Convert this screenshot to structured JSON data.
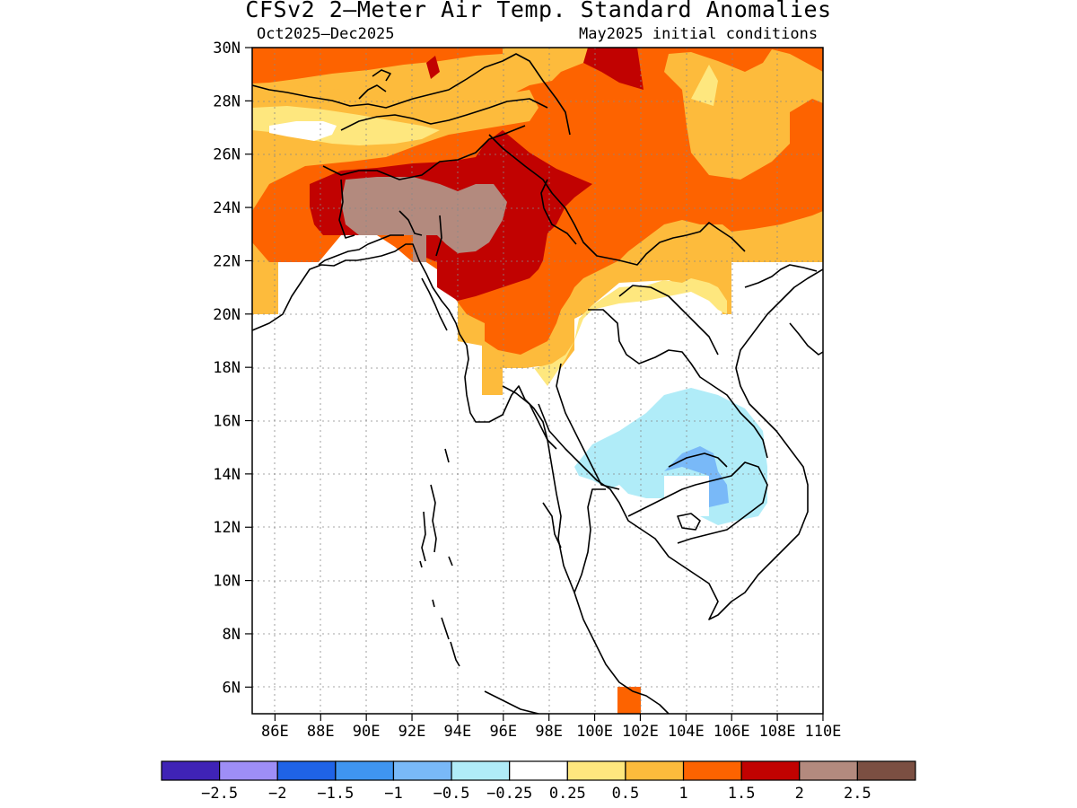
{
  "title": "CFSv2 2–Meter Air Temp. Standard Anomalies",
  "subtitle_left": "Oct2025–Dec2025",
  "subtitle_right": "May2025 initial conditions",
  "lat_labels": [
    "30N",
    "28N",
    "26N",
    "24N",
    "22N",
    "20N",
    "18N",
    "16N",
    "14N",
    "12N",
    "10N",
    "8N",
    "6N"
  ],
  "lon_labels": [
    "86E",
    "88E",
    "90E",
    "92E",
    "94E",
    "96E",
    "98E",
    "100E",
    "102E",
    "104E",
    "106E",
    "108E",
    "110E"
  ],
  "colorbar": {
    "colors": [
      "#3f23b6",
      "#9e8ef6",
      "#1f63e6",
      "#3f95f1",
      "#79b9f8",
      "#b0ecf8",
      "#ffffff",
      "#fee77e",
      "#fdbb3c",
      "#fd6300",
      "#c10201",
      "#b38a7e",
      "#7b4f42"
    ],
    "labels": [
      "−2.5",
      "−2",
      "−1.5",
      "−1",
      "−0.5",
      "−0.25",
      "0.25",
      "0.5",
      "1",
      "1.5",
      "2",
      "2.5"
    ]
  },
  "fill_colors": {
    "plus_0_25": "#fee77e",
    "plus_0_5": "#fdbb3c",
    "plus_1": "#fd6300",
    "plus_1_5": "#c10201",
    "plus_2": "#b38a7e",
    "minus_0_25": "#b0ecf8",
    "minus_0_5": "#79b9f8"
  },
  "map_extent": {
    "lon_min": 85,
    "lon_max": 110,
    "lat_min": 5,
    "lat_max": 30
  }
}
